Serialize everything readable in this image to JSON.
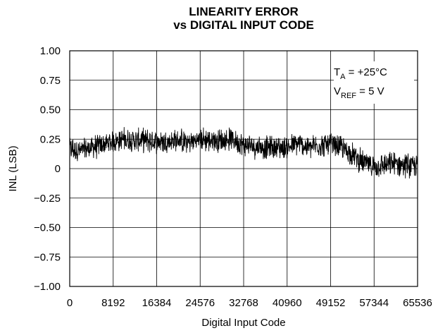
{
  "chart_data": {
    "type": "line",
    "title_line1": "LINEARITY ERROR",
    "title_line2": "vs DIGITAL INPUT CODE",
    "xlabel": "Digital Input Code",
    "ylabel": "INL (LSB)",
    "xlim": [
      0,
      65536
    ],
    "ylim": [
      -1.0,
      1.0
    ],
    "x_ticks": [
      "0",
      "8192",
      "16384",
      "24576",
      "32768",
      "40960",
      "49152",
      "57344",
      "65536"
    ],
    "y_ticks": [
      "1.00",
      "0.75",
      "0.50",
      "0.25",
      "0",
      "−0.25",
      "−0.50",
      "−0.75",
      "−1.00"
    ],
    "grid": true,
    "annotations": {
      "temp_main": "T",
      "temp_sub": "A",
      "temp_value": " = +25°C",
      "vref_main": "V",
      "vref_sub": "REF",
      "vref_value": " = 5 V"
    },
    "series": [
      {
        "x": [
          0,
          2048,
          4096,
          6144,
          8192,
          10240,
          12288,
          14336,
          16384,
          18432,
          20480,
          22528,
          24576,
          26624,
          28672,
          30720,
          32768,
          34816,
          36864,
          38912,
          40960,
          43008,
          45056,
          47104,
          49152,
          51200,
          53248,
          55296,
          57344,
          59392,
          61440,
          63488,
          65536
        ],
        "values": [
          0.17,
          0.15,
          0.18,
          0.2,
          0.23,
          0.25,
          0.24,
          0.24,
          0.23,
          0.23,
          0.24,
          0.22,
          0.25,
          0.24,
          0.24,
          0.25,
          0.2,
          0.19,
          0.18,
          0.18,
          0.18,
          0.21,
          0.18,
          0.2,
          0.2,
          0.18,
          0.12,
          0.05,
          0.02,
          0.03,
          0.04,
          0.03,
          0.02
        ],
        "noise_amplitude": 0.09
      }
    ]
  }
}
